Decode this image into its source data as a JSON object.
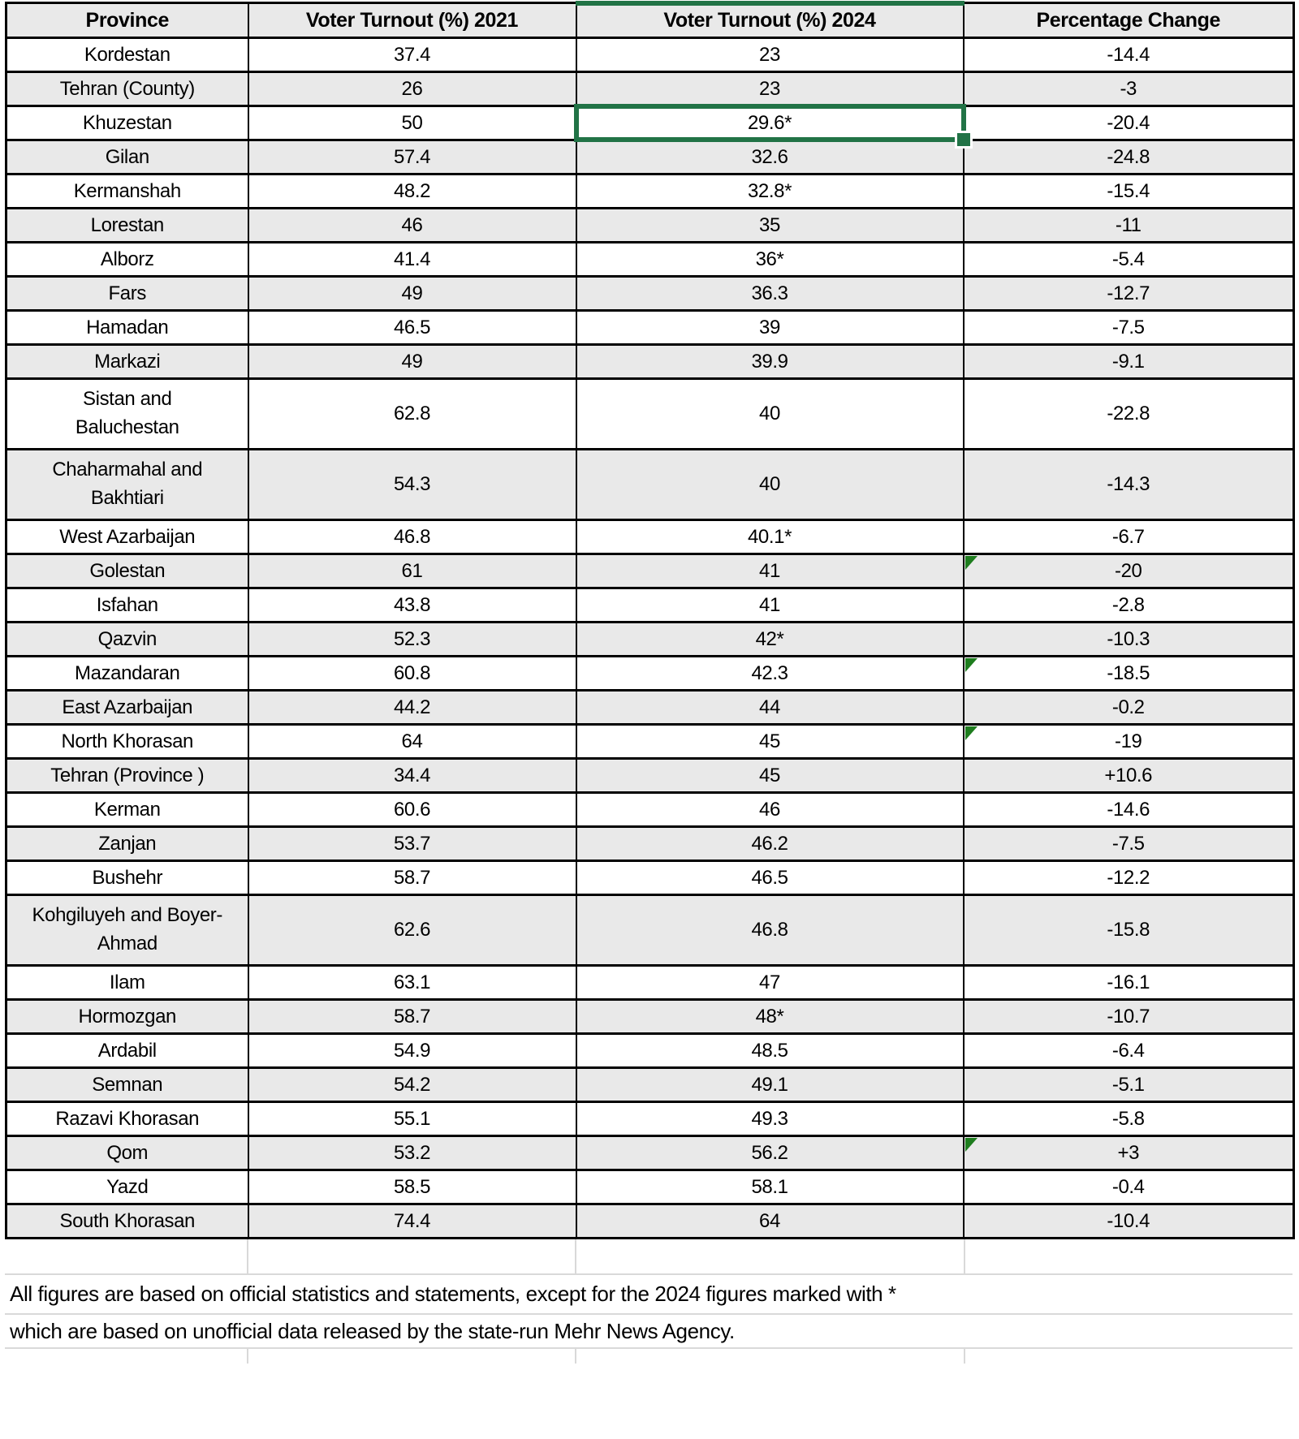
{
  "table": {
    "columns": [
      "Province",
      "Voter Turnout (%) 2021",
      "Voter Turnout (%) 2024",
      "Percentage Change"
    ],
    "rows": [
      {
        "province": "Kordestan",
        "turnout_2021": "37.4",
        "turnout_2024": "23",
        "change": "-14.4"
      },
      {
        "province": "Tehran (County)",
        "turnout_2021": "26",
        "turnout_2024": "23",
        "change": "-3"
      },
      {
        "province": "Khuzestan",
        "turnout_2021": "50",
        "turnout_2024": "29.6*",
        "change": "-20.4",
        "selected_2024": true
      },
      {
        "province": "Gilan",
        "turnout_2021": "57.4",
        "turnout_2024": "32.6",
        "change": "-24.8"
      },
      {
        "province": "Kermanshah",
        "turnout_2021": "48.2",
        "turnout_2024": "32.8*",
        "change": "-15.4"
      },
      {
        "province": "Lorestan",
        "turnout_2021": "46",
        "turnout_2024": "35",
        "change": "-11"
      },
      {
        "province": "Alborz",
        "turnout_2021": "41.4",
        "turnout_2024": "36*",
        "change": "-5.4"
      },
      {
        "province": "Fars",
        "turnout_2021": "49",
        "turnout_2024": "36.3",
        "change": "-12.7"
      },
      {
        "province": "Hamadan",
        "turnout_2021": "46.5",
        "turnout_2024": "39",
        "change": "-7.5"
      },
      {
        "province": "Markazi",
        "turnout_2021": "49",
        "turnout_2024": "39.9",
        "change": "-9.1"
      },
      {
        "province": "Sistan and Baluchestan",
        "turnout_2021": "62.8",
        "turnout_2024": "40",
        "change": "-22.8"
      },
      {
        "province": "Chaharmahal and Bakhtiari",
        "turnout_2021": "54.3",
        "turnout_2024": "40",
        "change": "-14.3"
      },
      {
        "province": "West Azarbaijan",
        "turnout_2021": "46.8",
        "turnout_2024": "40.1*",
        "change": "-6.7"
      },
      {
        "province": "Golestan",
        "turnout_2021": "61",
        "turnout_2024": "41",
        "change": "-20",
        "change_flag": true
      },
      {
        "province": "Isfahan",
        "turnout_2021": "43.8",
        "turnout_2024": "41",
        "change": "-2.8"
      },
      {
        "province": "Qazvin",
        "turnout_2021": "52.3",
        "turnout_2024": "42*",
        "change": "-10.3"
      },
      {
        "province": "Mazandaran",
        "turnout_2021": "60.8",
        "turnout_2024": "42.3",
        "change": "-18.5",
        "change_flag": true
      },
      {
        "province": "East Azarbaijan",
        "turnout_2021": "44.2",
        "turnout_2024": "44",
        "change": "-0.2"
      },
      {
        "province": "North Khorasan",
        "turnout_2021": "64",
        "turnout_2024": "45",
        "change": "-19",
        "change_flag": true
      },
      {
        "province": "Tehran (Province )",
        "turnout_2021": "34.4",
        "turnout_2024": "45",
        "change": "+10.6"
      },
      {
        "province": "Kerman",
        "turnout_2021": "60.6",
        "turnout_2024": "46",
        "change": "-14.6"
      },
      {
        "province": "Zanjan",
        "turnout_2021": "53.7",
        "turnout_2024": "46.2",
        "change": "-7.5"
      },
      {
        "province": "Bushehr",
        "turnout_2021": "58.7",
        "turnout_2024": "46.5",
        "change": "-12.2"
      },
      {
        "province": "Kohgiluyeh and Boyer-Ahmad",
        "turnout_2021": "62.6",
        "turnout_2024": "46.8",
        "change": "-15.8"
      },
      {
        "province": "Ilam",
        "turnout_2021": "63.1",
        "turnout_2024": "47",
        "change": "-16.1"
      },
      {
        "province": "Hormozgan",
        "turnout_2021": "58.7",
        "turnout_2024": "48*",
        "change": "-10.7"
      },
      {
        "province": "Ardabil",
        "turnout_2021": "54.9",
        "turnout_2024": "48.5",
        "change": "-6.4"
      },
      {
        "province": "Semnan",
        "turnout_2021": "54.2",
        "turnout_2024": "49.1",
        "change": "-5.1"
      },
      {
        "province": "Razavi Khorasan",
        "turnout_2021": "55.1",
        "turnout_2024": "49.3",
        "change": "-5.8"
      },
      {
        "province": "Qom",
        "turnout_2021": "53.2",
        "turnout_2024": "56.2",
        "change": "+3",
        "change_flag": true
      },
      {
        "province": "Yazd",
        "turnout_2021": "58.5",
        "turnout_2024": "58.1",
        "change": "-0.4"
      },
      {
        "province": "South Khorasan",
        "turnout_2021": "74.4",
        "turnout_2024": "64",
        "change": "-10.4"
      }
    ],
    "selected_cell_value": "29.6*"
  },
  "footnotes": {
    "line1": "All figures are based on official statistics and statements, except for the 2024 figures marked with *",
    "line2": "which are based on unofficial data released by the state-run Mehr News Agency."
  },
  "colors": {
    "selection_green": "#217346",
    "indicator_green": "#1e7d1e",
    "row_alt_gray": "#e9e9e9",
    "gridline_gray": "#d9d9d9",
    "border_black": "#000000"
  }
}
